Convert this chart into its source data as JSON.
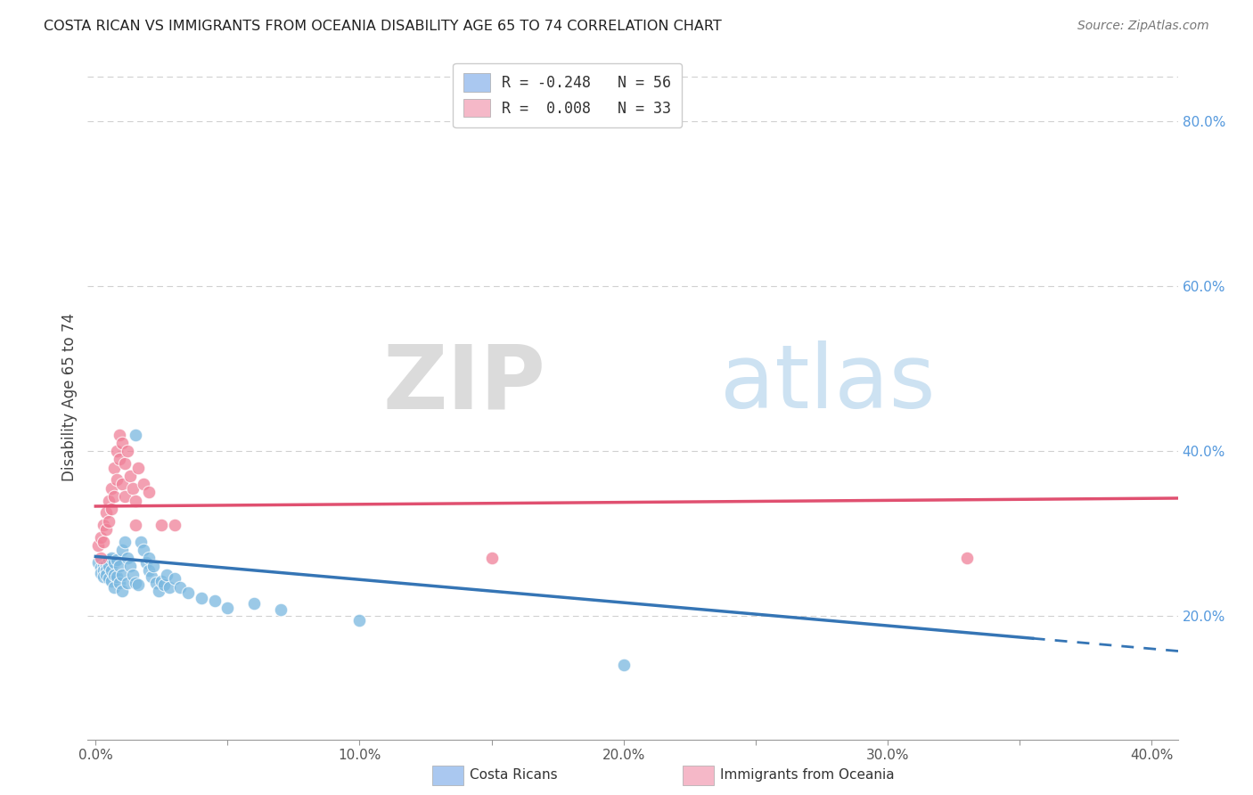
{
  "title": "COSTA RICAN VS IMMIGRANTS FROM OCEANIA DISABILITY AGE 65 TO 74 CORRELATION CHART",
  "source": "Source: ZipAtlas.com",
  "xlabel_ticks": [
    "0.0%",
    "",
    "10.0%",
    "",
    "20.0%",
    "",
    "30.0%",
    "",
    "40.0%"
  ],
  "xlabel_tick_vals": [
    0.0,
    0.05,
    0.1,
    0.15,
    0.2,
    0.25,
    0.3,
    0.35,
    0.4
  ],
  "ylabel": "Disability Age 65 to 74",
  "ylabel_right_ticks": [
    "20.0%",
    "40.0%",
    "60.0%",
    "80.0%"
  ],
  "ylabel_right_tick_vals": [
    0.2,
    0.4,
    0.6,
    0.8
  ],
  "xlim": [
    -0.003,
    0.41
  ],
  "ylim": [
    0.05,
    0.88
  ],
  "watermark_zip": "ZIP",
  "watermark_atlas": "atlas",
  "legend_label_cr": "R = -0.248   N = 56",
  "legend_label_oc": "R =  0.008   N = 33",
  "legend_color_cr": "#aac8f0",
  "legend_color_oc": "#f5b8c8",
  "scatter_color_cr": "#7ab8e0",
  "scatter_color_oceania": "#f08098",
  "line_color_cr": "#3575b5",
  "line_color_oceania": "#e05070",
  "grid_color": "#d0d0d0",
  "background_color": "#ffffff",
  "cr_line_y_intercept": 0.272,
  "cr_line_slope": -0.28,
  "cr_line_solid_end": 0.355,
  "oceania_line_y": 0.336,
  "costa_rican_scatter": [
    [
      0.001,
      0.265
    ],
    [
      0.002,
      0.258
    ],
    [
      0.002,
      0.252
    ],
    [
      0.003,
      0.26
    ],
    [
      0.003,
      0.255
    ],
    [
      0.003,
      0.248
    ],
    [
      0.004,
      0.262
    ],
    [
      0.004,
      0.255
    ],
    [
      0.004,
      0.25
    ],
    [
      0.005,
      0.268
    ],
    [
      0.005,
      0.26
    ],
    [
      0.005,
      0.245
    ],
    [
      0.006,
      0.27
    ],
    [
      0.006,
      0.255
    ],
    [
      0.006,
      0.242
    ],
    [
      0.007,
      0.265
    ],
    [
      0.007,
      0.25
    ],
    [
      0.007,
      0.235
    ],
    [
      0.008,
      0.268
    ],
    [
      0.008,
      0.248
    ],
    [
      0.009,
      0.26
    ],
    [
      0.009,
      0.24
    ],
    [
      0.01,
      0.28
    ],
    [
      0.01,
      0.25
    ],
    [
      0.01,
      0.23
    ],
    [
      0.011,
      0.29
    ],
    [
      0.012,
      0.27
    ],
    [
      0.012,
      0.24
    ],
    [
      0.013,
      0.26
    ],
    [
      0.014,
      0.25
    ],
    [
      0.015,
      0.42
    ],
    [
      0.015,
      0.24
    ],
    [
      0.016,
      0.238
    ],
    [
      0.017,
      0.29
    ],
    [
      0.018,
      0.28
    ],
    [
      0.019,
      0.265
    ],
    [
      0.02,
      0.27
    ],
    [
      0.02,
      0.255
    ],
    [
      0.021,
      0.248
    ],
    [
      0.022,
      0.26
    ],
    [
      0.023,
      0.24
    ],
    [
      0.024,
      0.23
    ],
    [
      0.025,
      0.242
    ],
    [
      0.026,
      0.238
    ],
    [
      0.027,
      0.25
    ],
    [
      0.028,
      0.235
    ],
    [
      0.03,
      0.245
    ],
    [
      0.032,
      0.235
    ],
    [
      0.035,
      0.228
    ],
    [
      0.04,
      0.222
    ],
    [
      0.045,
      0.218
    ],
    [
      0.05,
      0.21
    ],
    [
      0.06,
      0.215
    ],
    [
      0.07,
      0.208
    ],
    [
      0.1,
      0.195
    ],
    [
      0.2,
      0.14
    ]
  ],
  "oceania_scatter": [
    [
      0.001,
      0.285
    ],
    [
      0.002,
      0.295
    ],
    [
      0.002,
      0.27
    ],
    [
      0.003,
      0.31
    ],
    [
      0.003,
      0.29
    ],
    [
      0.004,
      0.325
    ],
    [
      0.004,
      0.305
    ],
    [
      0.005,
      0.34
    ],
    [
      0.005,
      0.315
    ],
    [
      0.006,
      0.355
    ],
    [
      0.006,
      0.33
    ],
    [
      0.007,
      0.38
    ],
    [
      0.007,
      0.345
    ],
    [
      0.008,
      0.4
    ],
    [
      0.008,
      0.365
    ],
    [
      0.009,
      0.42
    ],
    [
      0.009,
      0.39
    ],
    [
      0.01,
      0.41
    ],
    [
      0.01,
      0.36
    ],
    [
      0.011,
      0.385
    ],
    [
      0.011,
      0.345
    ],
    [
      0.012,
      0.4
    ],
    [
      0.013,
      0.37
    ],
    [
      0.014,
      0.355
    ],
    [
      0.015,
      0.34
    ],
    [
      0.015,
      0.31
    ],
    [
      0.016,
      0.38
    ],
    [
      0.018,
      0.36
    ],
    [
      0.02,
      0.35
    ],
    [
      0.025,
      0.31
    ],
    [
      0.03,
      0.31
    ],
    [
      0.15,
      0.27
    ],
    [
      0.33,
      0.27
    ]
  ]
}
